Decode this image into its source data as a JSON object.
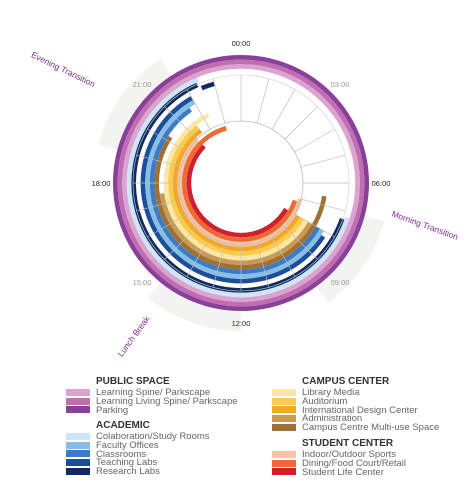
{
  "time_labels": [
    "00:00",
    "03:00",
    "06:00",
    "09:00",
    "12:00",
    "15:00",
    "18:00",
    "21:00"
  ],
  "transitions": [
    {
      "label": "Evening Transition",
      "start_hour": 19.0,
      "end_hour": 21.8
    },
    {
      "label": "Morning Transition",
      "start_hour": 7.0,
      "end_hour": 9.6
    },
    {
      "label": "Lunch Break",
      "start_hour": 12.0,
      "end_hour": 14.6
    }
  ],
  "transition_color": "#f3f3f1",
  "label_color": "#7b2b8c",
  "legend": {
    "groups": [
      {
        "title": "PUBLIC SPACE",
        "items": [
          {
            "label": "Learning Spine/ Parkscape",
            "color": "#dca3d0"
          },
          {
            "label": "Learning Living Spine/ Parkscape",
            "color": "#bf6fb1"
          },
          {
            "label": "Parking",
            "color": "#8a3f98"
          }
        ]
      },
      {
        "title": "ACADEMIC",
        "items": [
          {
            "label": "Colaboration/Study Rooms",
            "color": "#cfe5f6"
          },
          {
            "label": "Faculty Offices",
            "color": "#88bde6"
          },
          {
            "label": "Classrooms",
            "color": "#3b7cc4"
          },
          {
            "label": "Teaching Labs",
            "color": "#1c4f9a"
          },
          {
            "label": "Research Labs",
            "color": "#0f2b62"
          }
        ]
      },
      {
        "title": "CAMPUS CENTER",
        "items": [
          {
            "label": "Library Media",
            "color": "#fde7a8"
          },
          {
            "label": "Auditorium",
            "color": "#fbcb4e"
          },
          {
            "label": "International Design Center",
            "color": "#f2a72a"
          },
          {
            "label": "Administration",
            "color": "#c89b52"
          },
          {
            "label": "Campus Centre Multi-use Space",
            "color": "#9e7036"
          }
        ]
      },
      {
        "title": "STUDENT CENTER",
        "items": [
          {
            "label": "Indoor/Outdoor Sports",
            "color": "#f8c3a6"
          },
          {
            "label": "Dining/Food Court/Retail",
            "color": "#ef6a33"
          },
          {
            "label": "Student Life Center",
            "color": "#d0202f"
          }
        ]
      }
    ]
  },
  "rings": [
    {
      "use": "Parking",
      "start_hour": 0,
      "end_hour": 24
    },
    {
      "use": "Learning Living Spine/ Parkscape",
      "start_hour": 0,
      "end_hour": 24
    },
    {
      "use": "Learning Spine/ Parkscape",
      "start_hour": 0,
      "end_hour": 24
    },
    {
      "use": "Colaboration/Study Rooms",
      "start_hour": 7.2,
      "end_hour": 22.5
    },
    {
      "use": "Research Labs",
      "start_hour": 7.3,
      "end_hour": 22.4
    },
    {
      "use": "Research Labs",
      "start_hour": 22.5,
      "end_hour": 23.0
    },
    {
      "use": "Teaching Labs",
      "start_hour": 8.2,
      "end_hour": 22.0
    },
    {
      "use": "Faculty Offices",
      "start_hour": 8.0,
      "end_hour": 22.0
    },
    {
      "use": "Classrooms",
      "start_hour": 8.0,
      "end_hour": 21.7
    },
    {
      "use": "Campus Centre Multi-use Space",
      "start_hour": 6.6,
      "end_hour": 20.2
    },
    {
      "use": "Administration",
      "start_hour": 8.0,
      "end_hour": 17.5
    },
    {
      "use": "Library Media",
      "start_hour": 8.0,
      "end_hour": 22.3
    },
    {
      "use": "Auditorium",
      "start_hour": 8.0,
      "end_hour": 21.5
    },
    {
      "use": "International Design Center",
      "start_hour": 8.0,
      "end_hour": 21.5
    },
    {
      "use": "Indoor/Outdoor Sports",
      "start_hour": 7.0,
      "end_hour": 21.0
    },
    {
      "use": "Dining/Food Court/Retail",
      "start_hour": 7.2,
      "end_hour": 23.0
    },
    {
      "use": "Student Life Center",
      "start_hour": 8.0,
      "end_hour": 21.0
    }
  ]
}
